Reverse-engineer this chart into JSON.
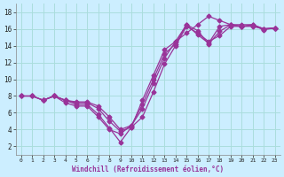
{
  "xlabel": "Windchill (Refroidissement éolien,°C)",
  "background_color": "#cceeff",
  "grid_color": "#aadddd",
  "line_color": "#993399",
  "xlim": [
    -0.5,
    23.5
  ],
  "ylim": [
    1,
    19
  ],
  "xticks": [
    0,
    1,
    2,
    3,
    4,
    5,
    6,
    7,
    8,
    9,
    10,
    11,
    12,
    13,
    14,
    15,
    16,
    17,
    18,
    19,
    20,
    21,
    22,
    23
  ],
  "yticks": [
    2,
    4,
    6,
    8,
    10,
    12,
    14,
    16,
    18
  ],
  "lines": [
    {
      "x": [
        0,
        1,
        2,
        3,
        4,
        5,
        6,
        7,
        8,
        9,
        10,
        11,
        12,
        13,
        14,
        15,
        16,
        17,
        18,
        19,
        20,
        21,
        22,
        23
      ],
      "y": [
        8,
        8,
        7.5,
        8,
        7.5,
        7.0,
        7.0,
        5.8,
        4.2,
        2.5,
        4.3,
        5.5,
        8.5,
        11.8,
        14.0,
        16.3,
        15.5,
        14.5,
        15.2,
        16.3,
        16.3,
        16.4,
        15.9,
        16.1
      ]
    },
    {
      "x": [
        0,
        1,
        2,
        3,
        4,
        5,
        6,
        7,
        8,
        9,
        10,
        11,
        12,
        13,
        14,
        15,
        16,
        17,
        18,
        19,
        20,
        21,
        22,
        23
      ],
      "y": [
        8,
        8,
        7.5,
        8,
        7.2,
        6.8,
        6.8,
        5.5,
        4.0,
        3.5,
        4.5,
        6.5,
        9.5,
        12.5,
        14.5,
        15.5,
        16.5,
        17.5,
        17.0,
        16.5,
        16.3,
        16.3,
        16.0,
        16.1
      ]
    },
    {
      "x": [
        0,
        1,
        2,
        3,
        4,
        5,
        6,
        7,
        8,
        9,
        10,
        11,
        12,
        13,
        14,
        15,
        16,
        17,
        18,
        19,
        20,
        21,
        22,
        23
      ],
      "y": [
        8,
        8,
        7.5,
        8,
        7.5,
        7.2,
        7.2,
        6.5,
        5.0,
        3.8,
        4.3,
        7.5,
        10.5,
        13.5,
        14.5,
        16.5,
        15.3,
        14.3,
        16.3,
        16.5,
        16.5,
        16.5,
        16.0,
        16.1
      ]
    },
    {
      "x": [
        2,
        3,
        4,
        5,
        6,
        7,
        8,
        9,
        10,
        11,
        12,
        13,
        14,
        15,
        16,
        17,
        18,
        19,
        20,
        21,
        22,
        23
      ],
      "y": [
        7.5,
        8.0,
        7.5,
        7.3,
        7.3,
        6.8,
        5.5,
        4.0,
        4.5,
        7.0,
        10.0,
        13.0,
        14.2,
        16.5,
        15.8,
        14.2,
        15.7,
        16.5,
        16.3,
        16.5,
        16.0,
        16.1
      ]
    }
  ],
  "marker": "D",
  "markersize": 2.5,
  "linewidth": 0.9
}
